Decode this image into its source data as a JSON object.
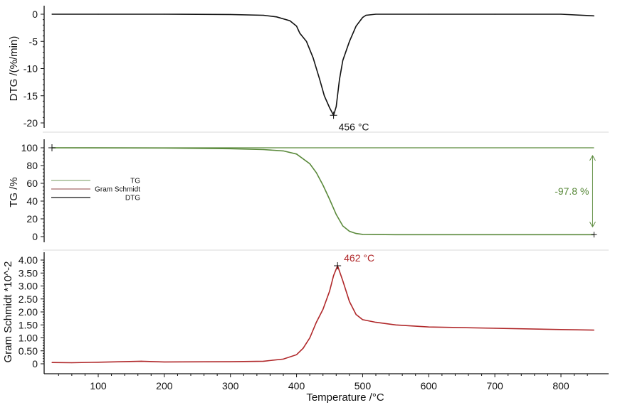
{
  "chart_data": [
    {
      "type": "line",
      "ylabel": "DTG /(%/min)",
      "ylim": [
        -20,
        0
      ],
      "yticks": [
        "0",
        "-5",
        "-10",
        "-15",
        "-20"
      ],
      "ytick_values": [
        0,
        -5,
        -10,
        -15,
        -20
      ],
      "color": "#111111",
      "annotation": {
        "text": "456 °C",
        "x": 456,
        "y": -18.6
      },
      "x": [
        30,
        100,
        200,
        300,
        350,
        370,
        390,
        400,
        405,
        415,
        425,
        435,
        442,
        450,
        456,
        460,
        465,
        470,
        480,
        490,
        500,
        505,
        520,
        600,
        700,
        800,
        850
      ],
      "values": [
        0,
        0,
        0,
        -0.05,
        -0.2,
        -0.5,
        -1.2,
        -2.2,
        -3.5,
        -5,
        -8,
        -12,
        -15,
        -17.2,
        -18.6,
        -17,
        -12,
        -8.5,
        -5,
        -2.2,
        -0.6,
        -0.2,
        0,
        0,
        0,
        0,
        -0.3
      ]
    },
    {
      "type": "line",
      "ylabel": "TG /%",
      "ylim": [
        0,
        100
      ],
      "yticks": [
        "100",
        "80",
        "60",
        "40",
        "20",
        "0"
      ],
      "ytick_values": [
        100,
        80,
        60,
        40,
        20,
        0
      ],
      "color": "#5b8a3c",
      "annotation": {
        "text": "-97.8 %",
        "from": 100,
        "to": 2.2,
        "x": 850
      },
      "reference_line": 100,
      "x": [
        30,
        200,
        300,
        350,
        380,
        400,
        420,
        430,
        440,
        450,
        460,
        470,
        480,
        490,
        500,
        550,
        850
      ],
      "values": [
        100,
        99.8,
        99,
        98,
        96.5,
        93,
        82,
        72,
        58,
        42,
        25,
        12,
        6,
        3.5,
        2.5,
        2.2,
        2.2
      ],
      "legend": {
        "placement": "left",
        "entries": [
          {
            "name": "TG",
            "color": "#8fae7e"
          },
          {
            "name": "Gram Schmidt",
            "color": "#a86a6a"
          },
          {
            "name": "DTG",
            "color": "#111111"
          }
        ]
      }
    },
    {
      "type": "line",
      "ylabel": "Gram Schmidt *10^-2",
      "xlabel": "Temperature /°C",
      "xlim": [
        30,
        850
      ],
      "xticks": [
        "100",
        "200",
        "300",
        "400",
        "500",
        "600",
        "700",
        "800"
      ],
      "xtick_values": [
        100,
        200,
        300,
        400,
        500,
        600,
        700,
        800
      ],
      "ylim": [
        0,
        4
      ],
      "yticks": [
        "4.00",
        "3.50",
        "3.00",
        "2.50",
        "2.00",
        "1.50",
        "1.00",
        "0.50",
        "0"
      ],
      "ytick_values": [
        4,
        3.5,
        3,
        2.5,
        2,
        1.5,
        1,
        0.5,
        0
      ],
      "color": "#b0282a",
      "annotation": {
        "text": "462 °C",
        "x": 462,
        "y": 3.78
      },
      "x": [
        30,
        60,
        100,
        165,
        200,
        300,
        350,
        380,
        400,
        410,
        420,
        430,
        440,
        450,
        456,
        462,
        470,
        480,
        490,
        500,
        520,
        550,
        600,
        700,
        800,
        850
      ],
      "values": [
        0.05,
        0.04,
        0.06,
        0.1,
        0.07,
        0.08,
        0.1,
        0.18,
        0.35,
        0.6,
        1.0,
        1.6,
        2.1,
        2.8,
        3.4,
        3.78,
        3.2,
        2.4,
        1.9,
        1.7,
        1.6,
        1.5,
        1.42,
        1.37,
        1.32,
        1.3
      ]
    }
  ]
}
